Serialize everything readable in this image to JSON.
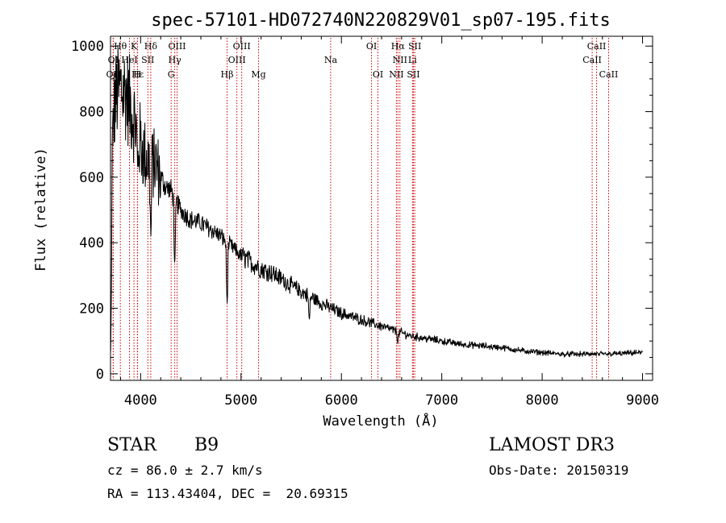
{
  "chart_data": {
    "type": "line",
    "title": "spec-57101-HD072740N220829V01_sp07-195.fits",
    "xlabel": "Wavelength (Å)",
    "ylabel": "Flux (relative)",
    "xlim": [
      3700,
      9100
    ],
    "ylim": [
      -20,
      1030
    ],
    "x_ticks": [
      4000,
      5000,
      6000,
      7000,
      8000,
      9000
    ],
    "y_ticks": [
      0,
      200,
      400,
      600,
      800,
      1000
    ],
    "grid": false,
    "line_color": "#000000",
    "marker_color": "#cc0000",
    "spectrum_anchors": {
      "x": [
        3700,
        3720,
        3740,
        3760,
        3800,
        3850,
        3900,
        3950,
        4000,
        4050,
        4100,
        4150,
        4200,
        4250,
        4300,
        4400,
        4500,
        4600,
        4700,
        4800,
        4900,
        5000,
        5100,
        5200,
        5300,
        5400,
        5500,
        5600,
        5700,
        5800,
        5900,
        6000,
        6100,
        6200,
        6300,
        6400,
        6500,
        6600,
        6700,
        6800,
        7000,
        7200,
        7400,
        7600,
        7800,
        8000,
        8200,
        8400,
        8600,
        8800,
        9000
      ],
      "y": [
        300,
        700,
        820,
        850,
        870,
        860,
        820,
        760,
        700,
        660,
        650,
        640,
        600,
        570,
        560,
        500,
        470,
        460,
        440,
        420,
        390,
        360,
        340,
        320,
        310,
        290,
        270,
        250,
        235,
        215,
        200,
        185,
        175,
        165,
        155,
        145,
        135,
        125,
        115,
        110,
        100,
        90,
        85,
        80,
        70,
        65,
        60,
        60,
        60,
        62,
        65
      ]
    },
    "absorption_features": [
      {
        "x": 3970,
        "depth": 120
      },
      {
        "x": 4101,
        "depth": 250
      },
      {
        "x": 4340,
        "depth": 230
      },
      {
        "x": 4861,
        "depth": 190
      },
      {
        "x": 5680,
        "depth": 80
      },
      {
        "x": 6563,
        "depth": 30
      }
    ],
    "lines": [
      {
        "label": "Hδ",
        "x": 4101,
        "row": 0
      },
      {
        "label": "OIII",
        "x": 4363,
        "row": 0
      },
      {
        "label": "OIII",
        "x": 5007,
        "row": 0
      },
      {
        "label": "OI",
        "x": 6300,
        "row": 0
      },
      {
        "label": "Hα",
        "x": 6563,
        "row": 0
      },
      {
        "label": "SII",
        "x": 6731,
        "row": 0
      },
      {
        "label": "CaII",
        "x": 8542,
        "row": 0
      },
      {
        "label": "Hγ",
        "x": 4340,
        "row": 1
      },
      {
        "label": "OIII",
        "x": 4959,
        "row": 1
      },
      {
        "label": "Na",
        "x": 5893,
        "row": 1
      },
      {
        "label": "NII",
        "x": 6583,
        "row": 1
      },
      {
        "label": "Li",
        "x": 6708,
        "row": 1
      },
      {
        "label": "CaII",
        "x": 8498,
        "row": 1
      },
      {
        "label": "G",
        "x": 4304,
        "row": 2
      },
      {
        "label": "Hβ",
        "x": 4861,
        "row": 2
      },
      {
        "label": "Mg",
        "x": 5175,
        "row": 2
      },
      {
        "label": "OI",
        "x": 6364,
        "row": 2
      },
      {
        "label": "NII",
        "x": 6548,
        "row": 2
      },
      {
        "label": "SII",
        "x": 6717,
        "row": 2
      },
      {
        "label": "CaII",
        "x": 8662,
        "row": 2
      },
      {
        "label": "Hθ",
        "x": 3798,
        "row": 0
      },
      {
        "label": "K",
        "x": 3934,
        "row": 0
      },
      {
        "label": "OI",
        "x": 3727,
        "row": 1
      },
      {
        "label": "HeI",
        "x": 3889,
        "row": 1
      },
      {
        "label": "SII",
        "x": 4072,
        "row": 1
      },
      {
        "label": "OII",
        "x": 3727,
        "row": 2
      },
      {
        "label": "Hε",
        "x": 3970,
        "row": 2
      },
      {
        "label": "H",
        "x": 3968,
        "row": 2
      }
    ]
  },
  "info": {
    "object_class": "STAR",
    "subclass": "B9",
    "survey": "LAMOST DR3",
    "redshift": "cz = 86.0 ± 2.7 km/s",
    "obs_date": "Obs-Date: 20150319",
    "coords": "RA = 113.43404, DEC =  20.69315"
  }
}
